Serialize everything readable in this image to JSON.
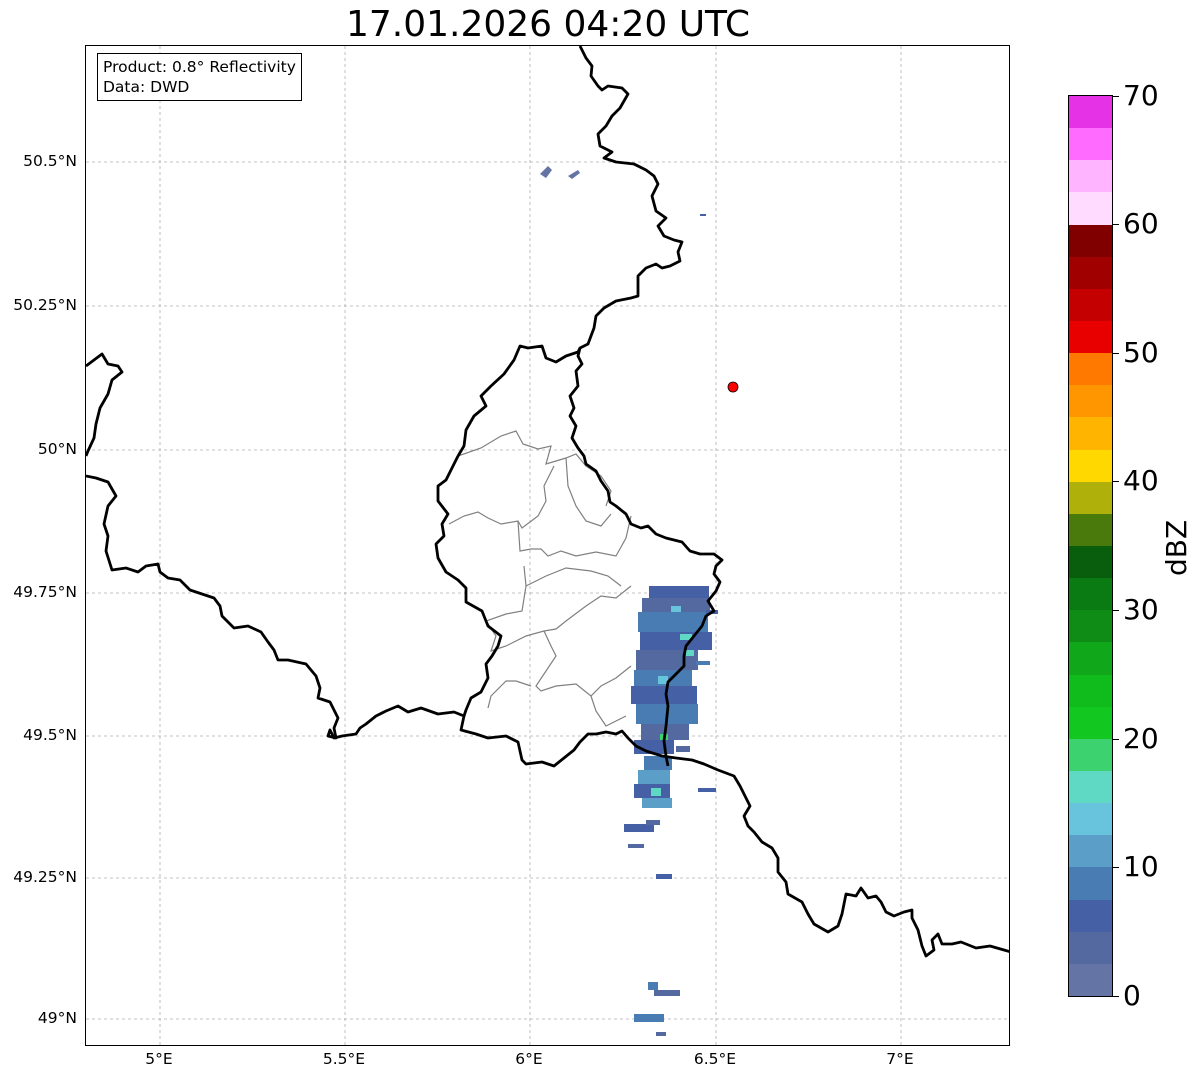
{
  "title": "17.01.2026 04:20 UTC",
  "info": {
    "product_line": "Product: 0.8° Reflectivity",
    "data_line": "Data: DWD"
  },
  "axes": {
    "lat_labels": [
      "50.5°N",
      "50.25°N",
      "50°N",
      "49.75°N",
      "49.5°N",
      "49.25°N",
      "49°N"
    ],
    "lon_labels": [
      "5°E",
      "5.5°E",
      "6°E",
      "6.5°E",
      "7°E"
    ]
  },
  "colorbar": {
    "unit": "dBZ",
    "tick_labels": [
      "0",
      "10",
      "20",
      "30",
      "40",
      "50",
      "60",
      "70"
    ],
    "colors": [
      "#6474a4",
      "#5469a0",
      "#4560a4",
      "#4a7cb4",
      "#5b9ec8",
      "#68c4dc",
      "#5fd8c4",
      "#3cd270",
      "#12c820",
      "#10bc1c",
      "#10a81a",
      "#0e8c16",
      "#0a7a12",
      "#085e0c",
      "#4a7a0c",
      "#b0b00a",
      "#ffd800",
      "#ffb400",
      "#ff9600",
      "#ff7800",
      "#e80000",
      "#c40000",
      "#a00000",
      "#800000",
      "#ffdcff",
      "#ffb4ff",
      "#ff6aff",
      "#e632e6"
    ]
  },
  "colors": {
    "marker": "#ff0000",
    "grid": "#b0b0b0",
    "border": "#000000",
    "district": "#808080"
  }
}
